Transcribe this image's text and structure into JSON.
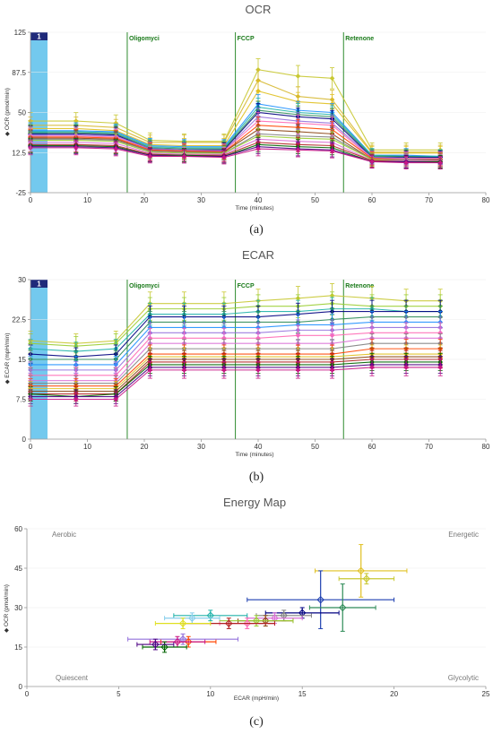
{
  "chart_data": [
    {
      "type": "line",
      "title": "OCR",
      "xlabel": "Time (minutes)",
      "ylabel": "◆ OCR (pmol/min)",
      "panel_label": "(a)",
      "badge": "1",
      "xlim": [
        0,
        80
      ],
      "ylim": [
        -25,
        125
      ],
      "xticks": [
        0,
        10,
        20,
        30,
        40,
        50,
        60,
        70,
        80
      ],
      "yticks": [
        -25,
        12.5,
        50,
        87.5,
        125
      ],
      "x": [
        0,
        8,
        15,
        21,
        27,
        34,
        40,
        47,
        53,
        60,
        66,
        72
      ],
      "injections": [
        {
          "label": "Oligomyci",
          "x": 17
        },
        {
          "label": "FCCP",
          "x": 36
        },
        {
          "label": "Retenone",
          "x": 55
        }
      ],
      "series": [
        {
          "color": "#c8c832",
          "values": [
            42,
            42,
            40,
            24,
            23,
            23,
            90,
            84,
            82,
            15,
            15,
            15
          ]
        },
        {
          "color": "#d6b830",
          "values": [
            38,
            38,
            36,
            22,
            22,
            22,
            80,
            65,
            62,
            13,
            13,
            13
          ]
        },
        {
          "color": "#e0c020",
          "values": [
            35,
            35,
            33,
            20,
            19,
            19,
            70,
            60,
            58,
            12,
            12,
            12
          ]
        },
        {
          "color": "#1e90ff",
          "values": [
            33,
            33,
            32,
            19,
            18,
            18,
            58,
            52,
            50,
            10,
            10,
            9
          ]
        },
        {
          "color": "#20b2aa",
          "values": [
            32,
            32,
            31,
            18,
            17,
            17,
            55,
            50,
            48,
            10,
            9,
            9
          ]
        },
        {
          "color": "#2e8b57",
          "values": [
            31,
            31,
            30,
            17,
            16,
            16,
            52,
            48,
            46,
            9,
            9,
            8
          ]
        },
        {
          "color": "#000080",
          "values": [
            30,
            30,
            29,
            16,
            15,
            15,
            50,
            46,
            44,
            8,
            8,
            8
          ]
        },
        {
          "color": "#9370db",
          "values": [
            29,
            29,
            28,
            16,
            15,
            14,
            46,
            42,
            40,
            8,
            7,
            7
          ]
        },
        {
          "color": "#ff69b4",
          "values": [
            28,
            28,
            27,
            15,
            14,
            14,
            42,
            40,
            38,
            7,
            7,
            7
          ]
        },
        {
          "color": "#ff4500",
          "values": [
            27,
            27,
            26,
            15,
            14,
            13,
            38,
            36,
            34,
            7,
            6,
            6
          ]
        },
        {
          "color": "#8b4513",
          "values": [
            26,
            26,
            25,
            14,
            13,
            13,
            34,
            32,
            30,
            6,
            6,
            6
          ]
        },
        {
          "color": "#808080",
          "values": [
            25,
            25,
            24,
            14,
            13,
            12,
            30,
            28,
            27,
            6,
            6,
            5
          ]
        },
        {
          "color": "#9acd32",
          "values": [
            24,
            24,
            23,
            13,
            12,
            12,
            28,
            26,
            25,
            6,
            5,
            5
          ]
        },
        {
          "color": "#da70d6",
          "values": [
            22,
            22,
            21,
            12,
            11,
            11,
            25,
            23,
            22,
            5,
            5,
            5
          ]
        },
        {
          "color": "#b22222",
          "values": [
            20,
            20,
            19,
            11,
            10,
            10,
            22,
            20,
            19,
            5,
            4,
            4
          ]
        },
        {
          "color": "#006400",
          "values": [
            19,
            19,
            18,
            10,
            10,
            9,
            20,
            18,
            17,
            4,
            4,
            4
          ]
        },
        {
          "color": "#4b0082",
          "values": [
            18,
            18,
            17,
            10,
            9,
            9,
            18,
            16,
            15,
            4,
            4,
            3
          ]
        },
        {
          "color": "#c71585",
          "values": [
            17,
            17,
            16,
            9,
            9,
            8,
            16,
            15,
            14,
            4,
            3,
            3
          ]
        }
      ]
    },
    {
      "type": "line",
      "title": "ECAR",
      "xlabel": "Time (minutes)",
      "ylabel": "◆ ECAR (mpH/min)",
      "panel_label": "(b)",
      "badge": "1",
      "xlim": [
        0,
        80
      ],
      "ylim": [
        0,
        30
      ],
      "xticks": [
        0,
        10,
        20,
        30,
        40,
        50,
        60,
        70,
        80
      ],
      "yticks": [
        0,
        7.5,
        15,
        22.5,
        30
      ],
      "x": [
        0,
        8,
        15,
        21,
        27,
        34,
        40,
        47,
        53,
        60,
        66,
        72
      ],
      "injections": [
        {
          "label": "Oligomyci",
          "x": 17
        },
        {
          "label": "FCCP",
          "x": 36
        },
        {
          "label": "Retenone",
          "x": 55
        }
      ],
      "series": [
        {
          "color": "#c8c832",
          "values": [
            18.5,
            18,
            18.5,
            25.5,
            25.5,
            25.5,
            26,
            26.5,
            27,
            26.5,
            26,
            26
          ]
        },
        {
          "color": "#9acd32",
          "values": [
            18,
            17.5,
            18,
            24.5,
            24.5,
            24.5,
            25,
            25,
            25.5,
            25,
            25,
            25
          ]
        },
        {
          "color": "#20b2aa",
          "values": [
            17,
            16.5,
            17,
            23.5,
            23.5,
            23.5,
            24,
            24,
            24.5,
            24.5,
            24,
            24
          ]
        },
        {
          "color": "#000080",
          "values": [
            16,
            15.5,
            16,
            23,
            23,
            23,
            23,
            23.5,
            24,
            24,
            24,
            24
          ]
        },
        {
          "color": "#2e8b57",
          "values": [
            15,
            15,
            15,
            22,
            22,
            22,
            22,
            22,
            22.5,
            23,
            23,
            23
          ]
        },
        {
          "color": "#1e90ff",
          "values": [
            14,
            14,
            14,
            21,
            21,
            21,
            21,
            21.5,
            21.5,
            22,
            22,
            22
          ]
        },
        {
          "color": "#9370db",
          "values": [
            13,
            13,
            13,
            20,
            20,
            20,
            20,
            20.5,
            20.5,
            21,
            21,
            21
          ]
        },
        {
          "color": "#ff69b4",
          "values": [
            12,
            12,
            12,
            19,
            19,
            19,
            19,
            19.5,
            19.5,
            20,
            20,
            20
          ]
        },
        {
          "color": "#da70d6",
          "values": [
            11,
            11,
            11,
            18,
            18,
            18,
            18,
            18,
            18,
            19,
            19,
            19
          ]
        },
        {
          "color": "#808080",
          "values": [
            10.5,
            10.5,
            10.5,
            17,
            17,
            17,
            17,
            17,
            17,
            18,
            18,
            18
          ]
        },
        {
          "color": "#ff4500",
          "values": [
            10,
            10,
            10,
            16,
            16,
            16,
            16,
            16,
            16,
            17,
            17,
            17
          ]
        },
        {
          "color": "#e0c020",
          "values": [
            9.5,
            9.5,
            9.5,
            15.5,
            15.5,
            15.5,
            15.5,
            15.5,
            15.5,
            16,
            16,
            16
          ]
        },
        {
          "color": "#8b4513",
          "values": [
            9,
            9,
            9,
            15,
            15,
            15,
            15,
            15,
            15,
            15.5,
            15.5,
            15.5
          ]
        },
        {
          "color": "#b22222",
          "values": [
            8.5,
            8.5,
            8.5,
            14.5,
            14.5,
            14.5,
            14.5,
            14.5,
            14.5,
            15,
            15,
            15
          ]
        },
        {
          "color": "#006400",
          "values": [
            8.5,
            8,
            8.5,
            14,
            14,
            14,
            14,
            14,
            14,
            14.5,
            14.5,
            14.5
          ]
        },
        {
          "color": "#4b0082",
          "values": [
            8,
            8,
            8,
            13.5,
            13.5,
            13.5,
            13.5,
            13.5,
            13.5,
            14,
            14,
            14
          ]
        },
        {
          "color": "#c71585",
          "values": [
            7.5,
            7.5,
            7.5,
            13,
            13,
            13,
            13,
            13,
            13,
            13.5,
            13.5,
            13.5
          ]
        }
      ]
    },
    {
      "type": "scatter",
      "title": "Energy Map",
      "xlabel": "ECAR (mpH/min)",
      "ylabel": "◆ OCR (pmol/min)",
      "panel_label": "(c)",
      "xlim": [
        0,
        25
      ],
      "ylim": [
        0,
        60
      ],
      "xticks": [
        0,
        5,
        10,
        15,
        20,
        25
      ],
      "yticks": [
        0,
        15,
        30,
        45,
        60
      ],
      "corner_labels": {
        "top_left": "Aerobic",
        "top_right": "Energetic",
        "bottom_left": "Quiescent",
        "bottom_right": "Glycolytic"
      },
      "points": [
        {
          "x": 18.2,
          "y": 44,
          "xerr": 2.5,
          "yerr": 10,
          "color": "#e0c020"
        },
        {
          "x": 18.5,
          "y": 41,
          "xerr": 1.5,
          "yerr": 2,
          "color": "#c8c832"
        },
        {
          "x": 16,
          "y": 33,
          "xerr": 4,
          "yerr": 11,
          "color": "#1e3fb0"
        },
        {
          "x": 17.2,
          "y": 30,
          "xerr": 1.8,
          "yerr": 9,
          "color": "#2e8b57"
        },
        {
          "x": 15,
          "y": 28,
          "xerr": 2,
          "yerr": 2,
          "color": "#000080"
        },
        {
          "x": 14,
          "y": 27,
          "xerr": 1.5,
          "yerr": 2,
          "color": "#808080"
        },
        {
          "x": 13.5,
          "y": 26,
          "xerr": 1.5,
          "yerr": 2,
          "color": "#da70d6"
        },
        {
          "x": 13,
          "y": 25,
          "xerr": 1.5,
          "yerr": 2,
          "color": "#8b4513"
        },
        {
          "x": 12.5,
          "y": 25,
          "xerr": 2,
          "yerr": 2,
          "color": "#9acd32"
        },
        {
          "x": 12,
          "y": 24,
          "xerr": 1.5,
          "yerr": 2,
          "color": "#ff69b4"
        },
        {
          "x": 11,
          "y": 24,
          "xerr": 2.5,
          "yerr": 2,
          "color": "#b22222"
        },
        {
          "x": 10,
          "y": 27,
          "xerr": 2,
          "yerr": 2,
          "color": "#20b2aa"
        },
        {
          "x": 9,
          "y": 26,
          "xerr": 1.5,
          "yerr": 2,
          "color": "#87ceeb"
        },
        {
          "x": 8.5,
          "y": 24,
          "xerr": 1.5,
          "yerr": 2,
          "color": "#e0e020"
        },
        {
          "x": 8.5,
          "y": 18,
          "xerr": 3,
          "yerr": 2,
          "color": "#9370db"
        },
        {
          "x": 8.8,
          "y": 17,
          "xerr": 1.5,
          "yerr": 2,
          "color": "#ff4500"
        },
        {
          "x": 8.2,
          "y": 17,
          "xerr": 1.5,
          "yerr": 2,
          "color": "#c71585"
        },
        {
          "x": 7.5,
          "y": 15,
          "xerr": 1.2,
          "yerr": 2,
          "color": "#006400"
        },
        {
          "x": 7,
          "y": 16,
          "xerr": 1,
          "yerr": 2,
          "color": "#4b0082"
        }
      ]
    }
  ]
}
